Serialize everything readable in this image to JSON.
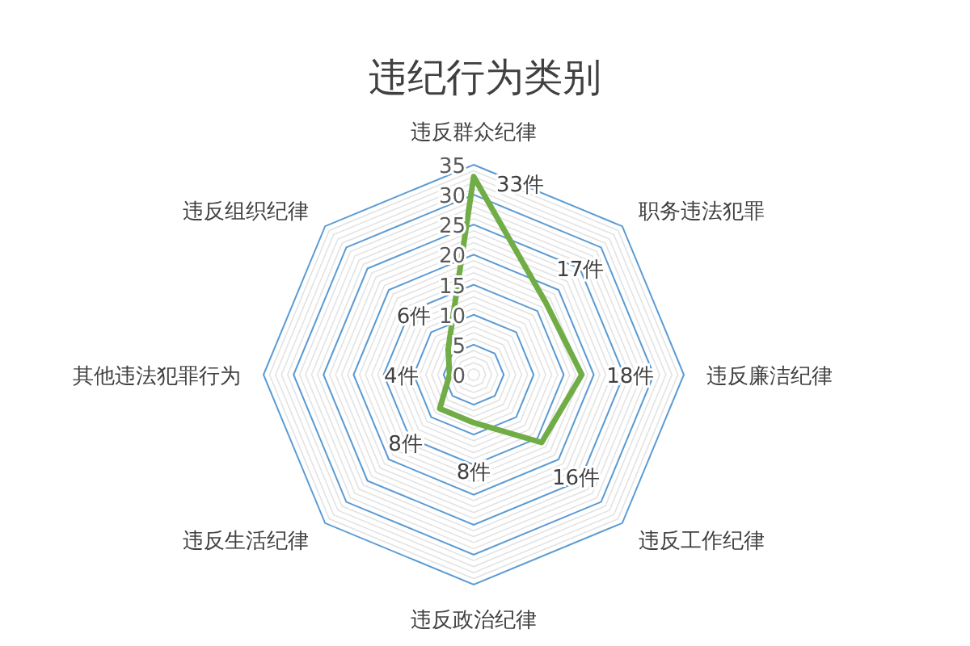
{
  "chart_data": {
    "type": "radar",
    "title": "违纪行为类别",
    "categories": [
      "违反群众纪律",
      "职务违法犯罪",
      "违反廉洁纪律",
      "违反工作纪律",
      "违反政治纪律",
      "违反生活纪律",
      "其他违法犯罪行为",
      "违反组织纪律"
    ],
    "series": [
      {
        "color": "#70ad47",
        "values": [
          33,
          17,
          18,
          16,
          8,
          8,
          4,
          6
        ],
        "value_labels": [
          "33件",
          "17件",
          "18件",
          "16件",
          "8件",
          "8件",
          "4件",
          "6件"
        ]
      }
    ],
    "ylim": [
      0,
      35
    ],
    "yticks": [
      0,
      5,
      10,
      15,
      20,
      25,
      30,
      35
    ],
    "grid": true
  }
}
